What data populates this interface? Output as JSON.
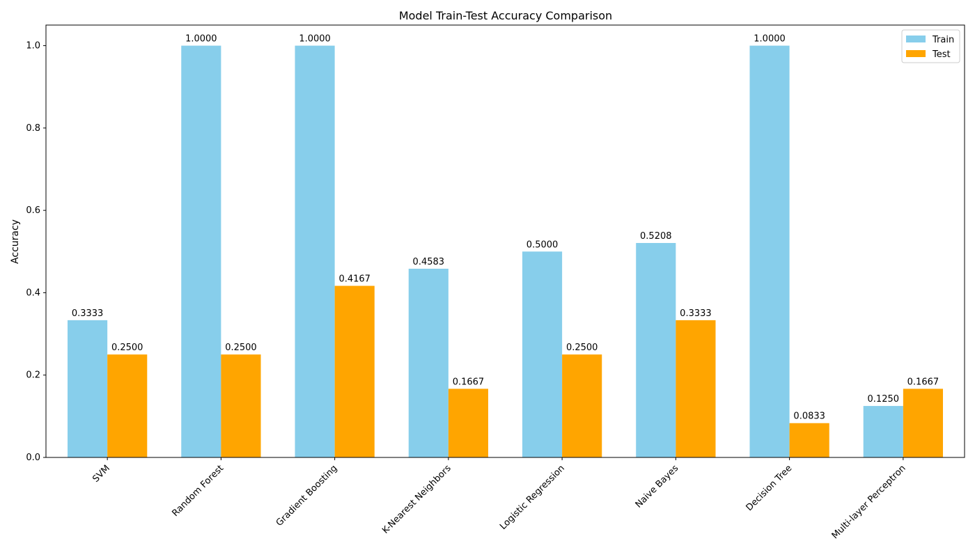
{
  "chart_data": {
    "type": "bar",
    "title": "Model Train-Test Accuracy Comparison",
    "xlabel": "",
    "ylabel": "Accuracy",
    "ylim": [
      0,
      1.05
    ],
    "yticks": [
      "0.0",
      "0.2",
      "0.4",
      "0.6",
      "0.8",
      "1.0"
    ],
    "grid": false,
    "legend_position": "top-right",
    "categories": [
      "SVM",
      "Random Forest",
      "Gradient Boosting",
      "K-Nearest Neighbors",
      "Logistic Regression",
      "Naive Bayes",
      "Decision Tree",
      "Multi-layer Perceptron"
    ],
    "series": [
      {
        "name": "Train",
        "color": "#87ceeb",
        "values": [
          0.3333,
          1.0,
          1.0,
          0.4583,
          0.5,
          0.5208,
          1.0,
          0.125
        ],
        "labels": [
          "0.3333",
          "1.0000",
          "1.0000",
          "0.4583",
          "0.5000",
          "0.5208",
          "1.0000",
          "0.1250"
        ]
      },
      {
        "name": "Test",
        "color": "#ffa500",
        "values": [
          0.25,
          0.25,
          0.4167,
          0.1667,
          0.25,
          0.3333,
          0.0833,
          0.1667
        ],
        "labels": [
          "0.2500",
          "0.2500",
          "0.4167",
          "0.1667",
          "0.2500",
          "0.3333",
          "0.0833",
          "0.1667"
        ]
      }
    ]
  }
}
